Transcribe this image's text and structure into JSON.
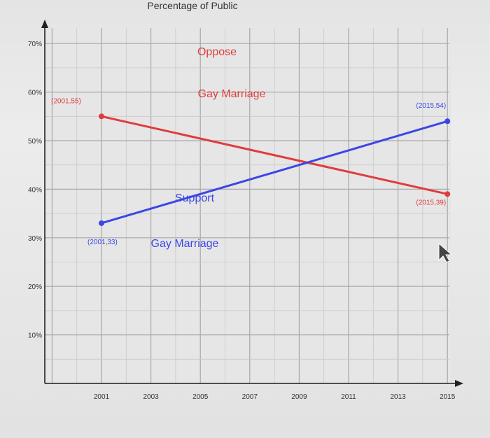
{
  "chart_data": {
    "type": "line",
    "title": "Percentage of Public",
    "xlabel": "",
    "ylabel": "",
    "x_ticks": [
      "2001",
      "2003",
      "2005",
      "2007",
      "2009",
      "2011",
      "2013",
      "2015"
    ],
    "y_ticks": [
      "10%",
      "20%",
      "30%",
      "40%",
      "50%",
      "60%",
      "70%"
    ],
    "xlim": [
      1999,
      2015
    ],
    "ylim": [
      0,
      70
    ],
    "grid": true,
    "legend": "none",
    "series": [
      {
        "name": "Oppose Gay Marriage",
        "label_lines": [
          "Oppose",
          "Gay Marriage"
        ],
        "color": "#e03c3c",
        "points": [
          {
            "x": 2001,
            "y": 55
          },
          {
            "x": 2015,
            "y": 39
          }
        ],
        "point_labels": [
          "(2001,55)",
          "(2015,39)"
        ]
      },
      {
        "name": "Support Gay Marriage",
        "label_lines": [
          "Support",
          "Gay Marriage"
        ],
        "color": "#3c46e6",
        "points": [
          {
            "x": 2001,
            "y": 33
          },
          {
            "x": 2015,
            "y": 54
          }
        ],
        "point_labels": [
          "(2001,33)",
          "(2015,54)"
        ]
      }
    ]
  }
}
